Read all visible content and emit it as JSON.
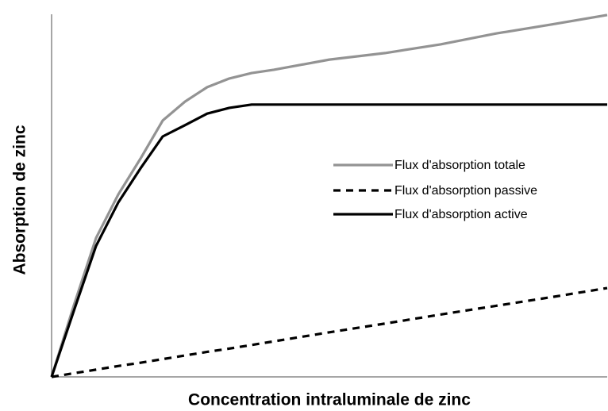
{
  "chart_data": {
    "type": "line",
    "xlabel": "Concentration intraluminale de zinc",
    "ylabel": "Absorption de zinc",
    "x": [
      0,
      4,
      8,
      12,
      16,
      20,
      24,
      28,
      32,
      36,
      40,
      50,
      60,
      70,
      80,
      90,
      100
    ],
    "xlim": [
      0,
      100
    ],
    "ylim": [
      0,
      100
    ],
    "legend": "center-right",
    "series": [
      {
        "name": "Flux d'absorption totale",
        "color": "#939393",
        "style": "solid",
        "values": [
          0,
          19.7,
          38.3,
          50.3,
          60.2,
          70.7,
          75.9,
          79.9,
          82.3,
          83.8,
          84.7,
          87.5,
          89.3,
          91.7,
          94.7,
          97.2,
          99.8
        ]
      },
      {
        "name": "Flux d'absorption passive",
        "color": "#000000",
        "style": "dashed",
        "values": [
          0,
          1,
          2,
          3,
          3.9,
          4.9,
          5.9,
          6.9,
          7.8,
          8.8,
          9.8,
          12.3,
          14.7,
          17.2,
          19.6,
          22,
          24.5
        ]
      },
      {
        "name": "Flux d'absorption active",
        "color": "#000000",
        "style": "solid",
        "values": [
          0,
          18.2,
          36.1,
          48.1,
          57.5,
          66.3,
          69.4,
          72.6,
          74.2,
          75.1,
          75.1,
          75.1,
          75.1,
          75.1,
          75.1,
          75.1,
          75.1
        ]
      }
    ]
  }
}
